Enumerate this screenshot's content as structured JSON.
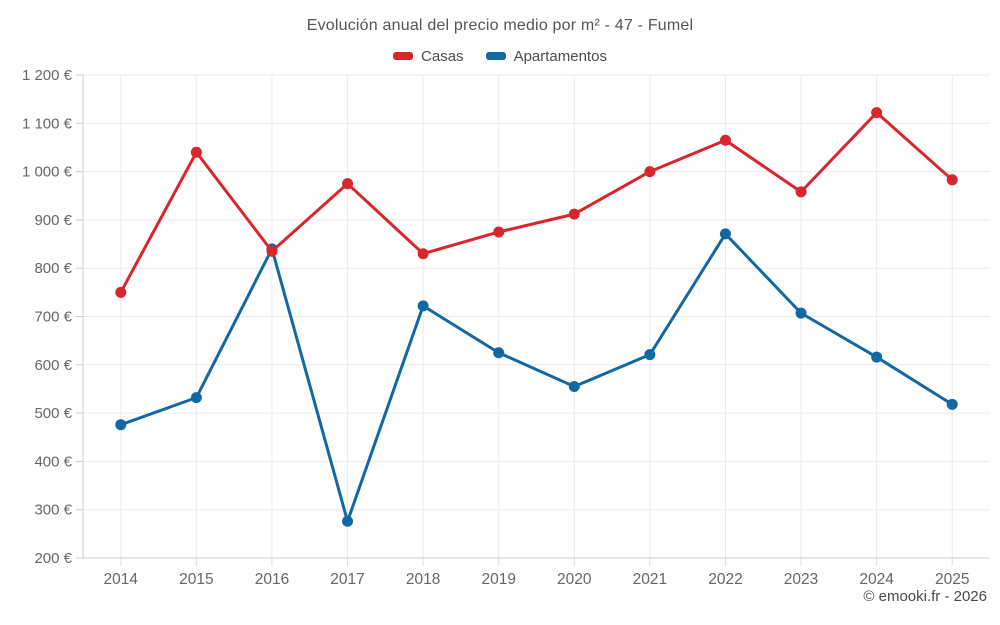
{
  "title": "Evolución anual del precio medio por m² - 47 - Fumel",
  "footer": "© emooki.fr - 2026",
  "legend": {
    "items": [
      {
        "label": "Casas",
        "color": "#d8262c"
      },
      {
        "label": "Apartamentos",
        "color": "#1268a3"
      }
    ]
  },
  "colors": {
    "casas": "#d8262c",
    "apartamentos": "#1268a3",
    "gridline": "#ebebeb",
    "axis_line": "#cccccc",
    "bottom_tick": "#dddddd",
    "tick_label": "#666666",
    "title_text": "#555555"
  },
  "chart_data": {
    "type": "line",
    "x": [
      2014,
      2015,
      2016,
      2017,
      2018,
      2019,
      2020,
      2021,
      2022,
      2023,
      2024,
      2025
    ],
    "series": [
      {
        "name": "Casas",
        "color": "#d8262c",
        "values": [
          750,
          1040,
          835,
          975,
          830,
          875,
          912,
          1000,
          1065,
          958,
          1122,
          983
        ]
      },
      {
        "name": "Apartamentos",
        "color": "#1268a3",
        "values": [
          476,
          532,
          840,
          276,
          722,
          625,
          555,
          621,
          871,
          707,
          616,
          518
        ]
      }
    ],
    "title": "Evolución anual del precio medio por m² - 47 - Fumel",
    "xlabel": "",
    "ylabel": "",
    "ylim": [
      200,
      1200
    ],
    "ytick_step": 100,
    "ytick_suffix": " €",
    "grid": true,
    "legend_position": "top",
    "marker": "circle",
    "annotation": "© emooki.fr - 2026"
  }
}
